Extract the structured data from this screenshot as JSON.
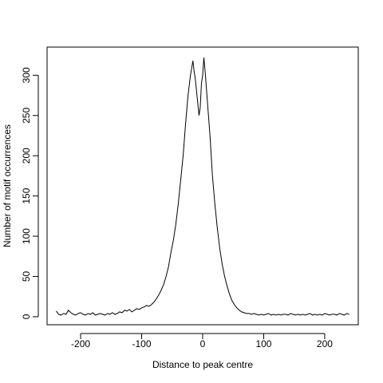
{
  "chart_data": {
    "type": "line",
    "title": "",
    "xlabel": "Distance to peak centre",
    "ylabel": "Number of motif occurrences",
    "xlim": [
      -255,
      255
    ],
    "ylim": [
      -10,
      335
    ],
    "xticks": [
      -200,
      -100,
      0,
      100,
      200
    ],
    "yticks": [
      0,
      50,
      100,
      150,
      200,
      250,
      300
    ],
    "xtick_labels": [
      "-200",
      "-100",
      "0",
      "100",
      "200"
    ],
    "ytick_labels": [
      "0",
      "50",
      "100",
      "150",
      "200",
      "250",
      "300"
    ],
    "grid": false,
    "line_color": "#000000",
    "series": [
      {
        "x": [
          -240,
          -236,
          -232,
          -228,
          -224,
          -220,
          -216,
          -212,
          -208,
          -204,
          -200,
          -196,
          -192,
          -188,
          -184,
          -180,
          -176,
          -172,
          -168,
          -164,
          -160,
          -156,
          -152,
          -148,
          -144,
          -140,
          -136,
          -132,
          -128,
          -124,
          -120,
          -116,
          -112,
          -108,
          -104,
          -100,
          -96,
          -92,
          -88,
          -84,
          -80,
          -76,
          -72,
          -68,
          -64,
          -60,
          -56,
          -52,
          -48,
          -44,
          -40,
          -36,
          -32,
          -28,
          -24,
          -20,
          -16,
          -14,
          -12,
          -10,
          -8,
          -6,
          -4,
          -2,
          0,
          2,
          4,
          6,
          8,
          10,
          12,
          14,
          16,
          20,
          24,
          28,
          32,
          36,
          40,
          44,
          48,
          52,
          56,
          60,
          64,
          68,
          72,
          76,
          80,
          84,
          88,
          92,
          96,
          100,
          104,
          108,
          112,
          116,
          120,
          124,
          128,
          132,
          136,
          140,
          144,
          148,
          152,
          156,
          160,
          164,
          168,
          172,
          176,
          180,
          184,
          188,
          192,
          196,
          200,
          204,
          208,
          212,
          216,
          220,
          224,
          228,
          232,
          236,
          240
        ],
        "y": [
          7,
          3,
          2,
          4,
          3,
          8,
          5,
          3,
          2,
          4,
          5,
          3,
          2,
          4,
          3,
          5,
          2,
          3,
          4,
          3,
          2,
          4,
          3,
          5,
          3,
          4,
          6,
          5,
          8,
          7,
          9,
          6,
          8,
          10,
          9,
          11,
          12,
          14,
          13,
          15,
          18,
          22,
          27,
          33,
          40,
          50,
          62,
          80,
          95,
          115,
          140,
          170,
          200,
          240,
          275,
          300,
          318,
          305,
          295,
          280,
          265,
          250,
          260,
          290,
          300,
          322,
          305,
          285,
          265,
          245,
          225,
          200,
          175,
          140,
          110,
          85,
          65,
          50,
          38,
          28,
          20,
          15,
          11,
          8,
          6,
          5,
          4,
          4,
          3,
          4,
          3,
          2,
          3,
          2,
          3,
          4,
          2,
          3,
          2,
          3,
          2,
          3,
          3,
          2,
          4,
          3,
          2,
          3,
          2,
          3,
          2,
          3,
          4,
          2,
          3,
          2,
          3,
          2,
          4,
          3,
          2,
          3,
          3,
          2,
          4,
          3,
          2,
          4,
          3
        ]
      }
    ]
  }
}
